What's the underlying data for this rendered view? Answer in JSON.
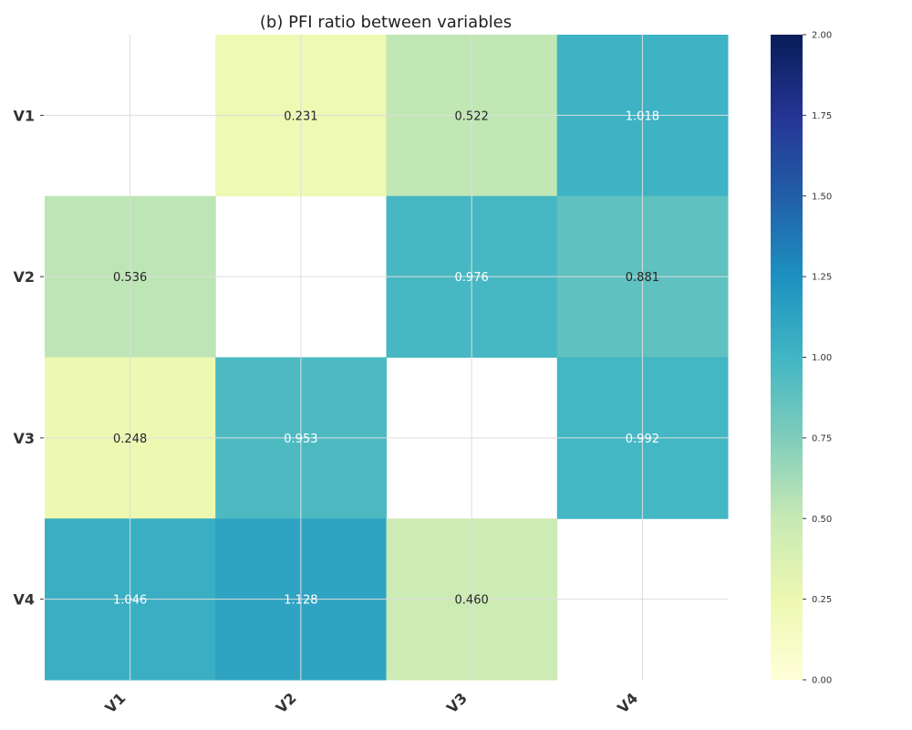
{
  "chart_data": {
    "type": "heatmap",
    "title": "(b) PFI ratio between variables",
    "rows": [
      "V1",
      "V2",
      "V3",
      "V4"
    ],
    "columns": [
      "V1",
      "V2",
      "V3",
      "V4"
    ],
    "values": [
      [
        null,
        0.231,
        0.522,
        1.018
      ],
      [
        0.536,
        null,
        0.976,
        0.881
      ],
      [
        0.248,
        0.953,
        null,
        0.992
      ],
      [
        1.046,
        1.128,
        0.46,
        null
      ]
    ],
    "labels": [
      [
        "",
        "0.231",
        "0.522",
        "1.018"
      ],
      [
        "0.536",
        "",
        "0.976",
        "0.881"
      ],
      [
        "0.248",
        "0.953",
        "",
        "0.992"
      ],
      [
        "1.046",
        "1.128",
        "0.460",
        ""
      ]
    ],
    "colorbar": {
      "colormap": "YlGnBu",
      "range": [
        0,
        2
      ],
      "ticks": [
        "0.00",
        "0.25",
        "0.50",
        "0.75",
        "1.00",
        "1.25",
        "1.50",
        "1.75",
        "2.00"
      ]
    },
    "grid": true
  }
}
